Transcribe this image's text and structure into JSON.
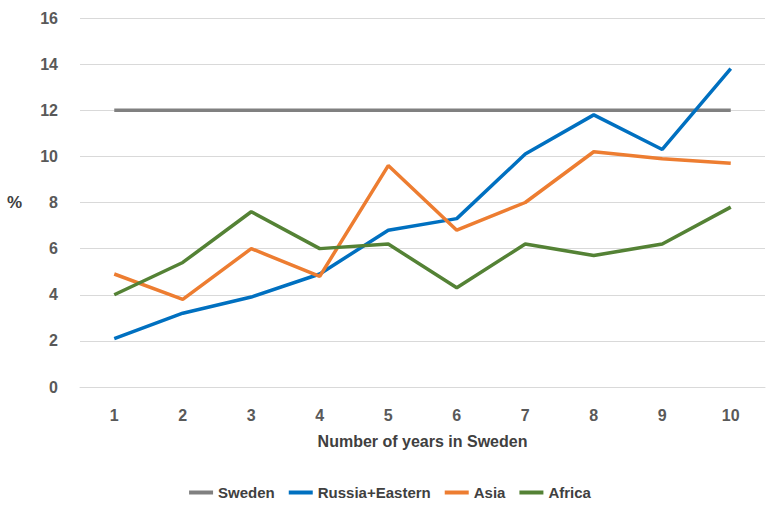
{
  "chart_data": {
    "type": "line",
    "x_label": "Number of years in Sweden",
    "y_label": "%",
    "categories": [
      1,
      2,
      3,
      4,
      5,
      6,
      7,
      8,
      9,
      10
    ],
    "series": [
      {
        "name": "Sweden",
        "color": "#808080",
        "values": [
          12,
          12,
          12,
          12,
          12,
          12,
          12,
          12,
          12,
          12
        ]
      },
      {
        "name": "Russia+Eastern",
        "color": "#0070c0",
        "values": [
          2.1,
          3.2,
          3.9,
          4.9,
          6.8,
          7.3,
          10.1,
          11.8,
          10.3,
          13.8
        ]
      },
      {
        "name": "Asia",
        "color": "#ed7d31",
        "values": [
          4.9,
          3.8,
          6.0,
          4.8,
          9.6,
          6.8,
          8.0,
          10.2,
          9.9,
          9.7
        ]
      },
      {
        "name": "Africa",
        "color": "#548235",
        "values": [
          4.0,
          5.4,
          7.6,
          6.0,
          6.2,
          4.3,
          6.2,
          5.7,
          6.2,
          7.8
        ]
      }
    ],
    "ylim": [
      0,
      16
    ],
    "yticks": [
      0,
      2,
      4,
      6,
      8,
      10,
      12,
      14,
      16
    ],
    "grid": true,
    "legend": "bottom"
  }
}
